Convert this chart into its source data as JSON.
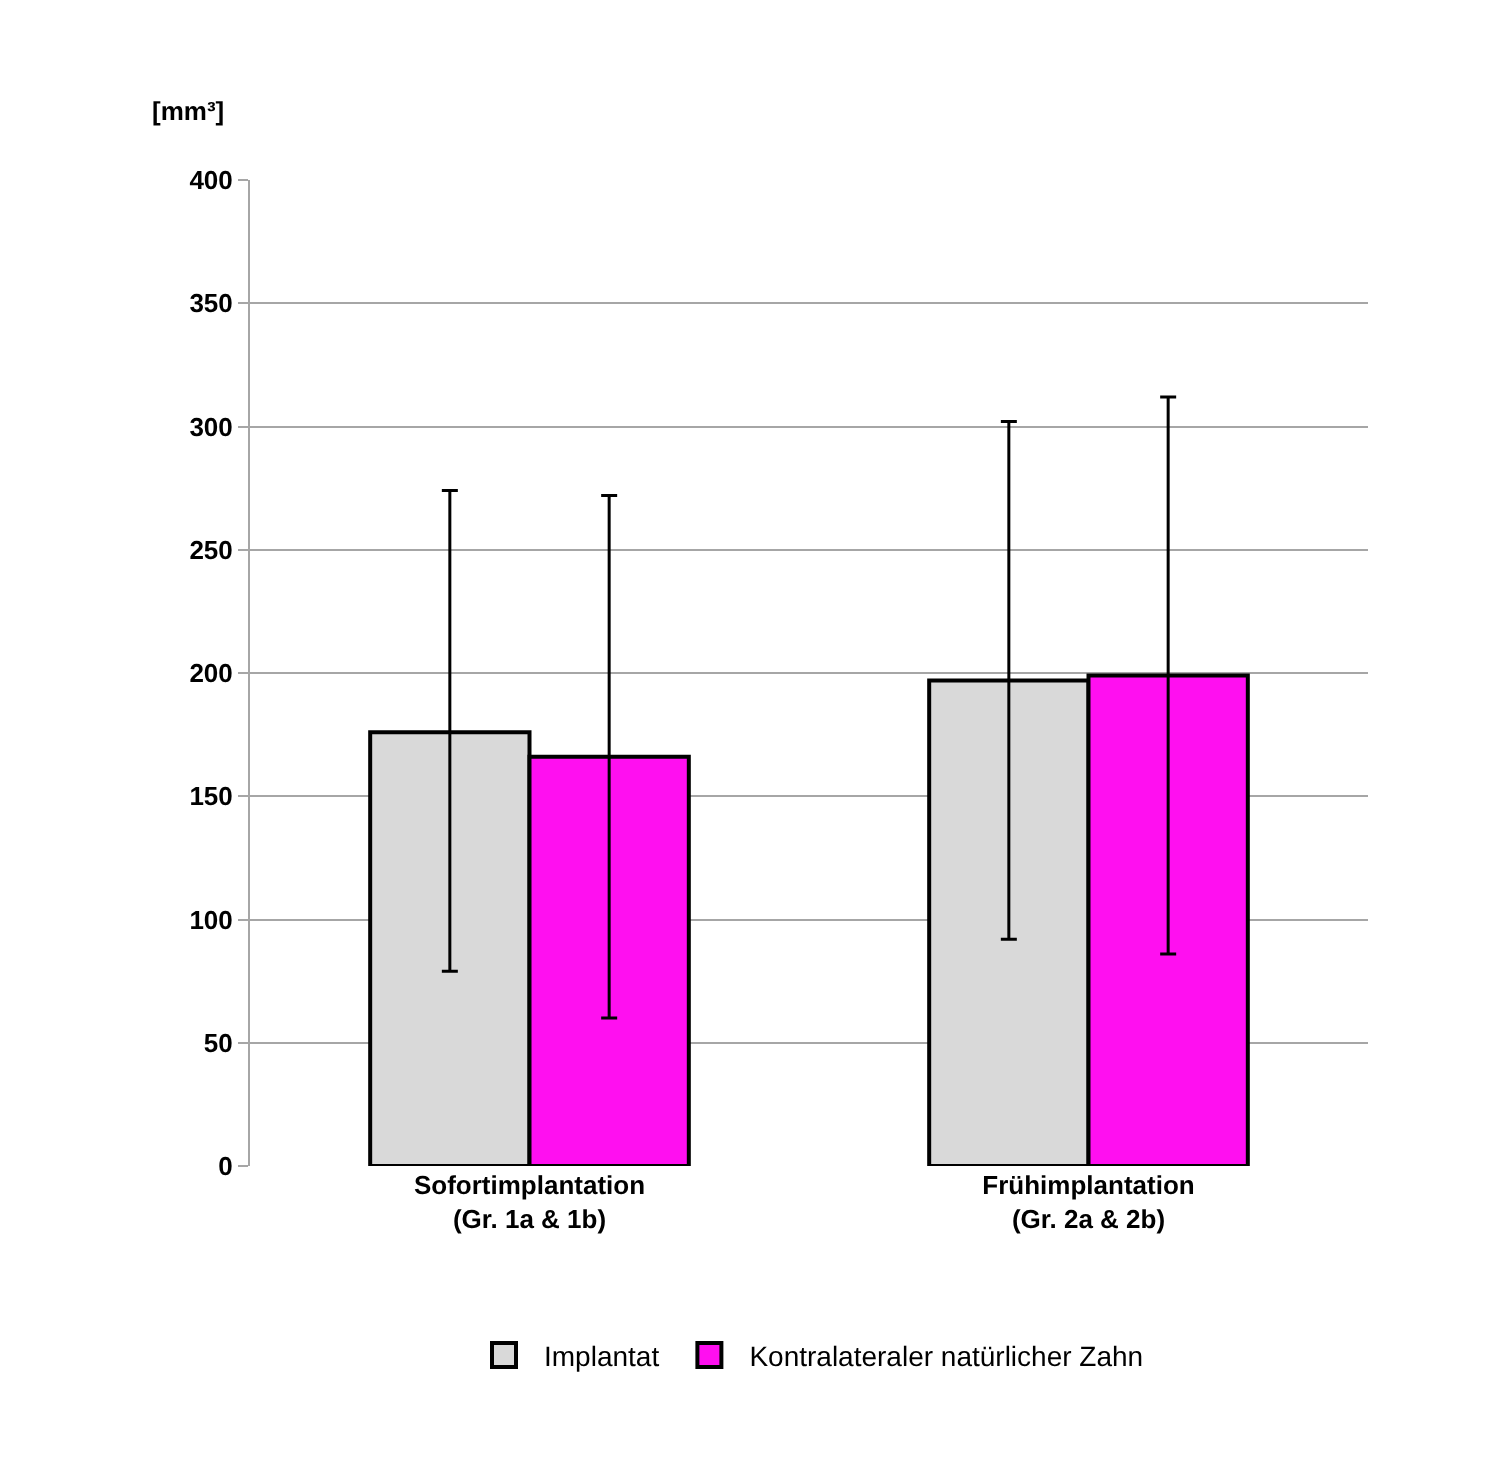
{
  "chart_data": {
    "type": "bar",
    "ylabel": "[mm³]",
    "categories": [
      "Sofortimplantation\n(Gr. 1a & 1b)",
      "Frühimplantation\n(Gr. 2a & 2b)"
    ],
    "series": [
      {
        "name": "Implantat",
        "color": "#d9d9d9",
        "values": [
          176,
          197
        ],
        "errors": [
          [
            79,
            274
          ],
          [
            92,
            302
          ]
        ]
      },
      {
        "name": "Kontralateraler natürlicher Zahn",
        "color": "#ff0ff0",
        "values": [
          166,
          199
        ],
        "errors": [
          [
            60,
            272
          ],
          [
            86,
            312
          ]
        ]
      }
    ],
    "ylim": [
      0,
      400
    ],
    "yticks": [
      0,
      50,
      100,
      150,
      200,
      250,
      300,
      350,
      400
    ],
    "grid": "y",
    "legend": "bottom"
  }
}
